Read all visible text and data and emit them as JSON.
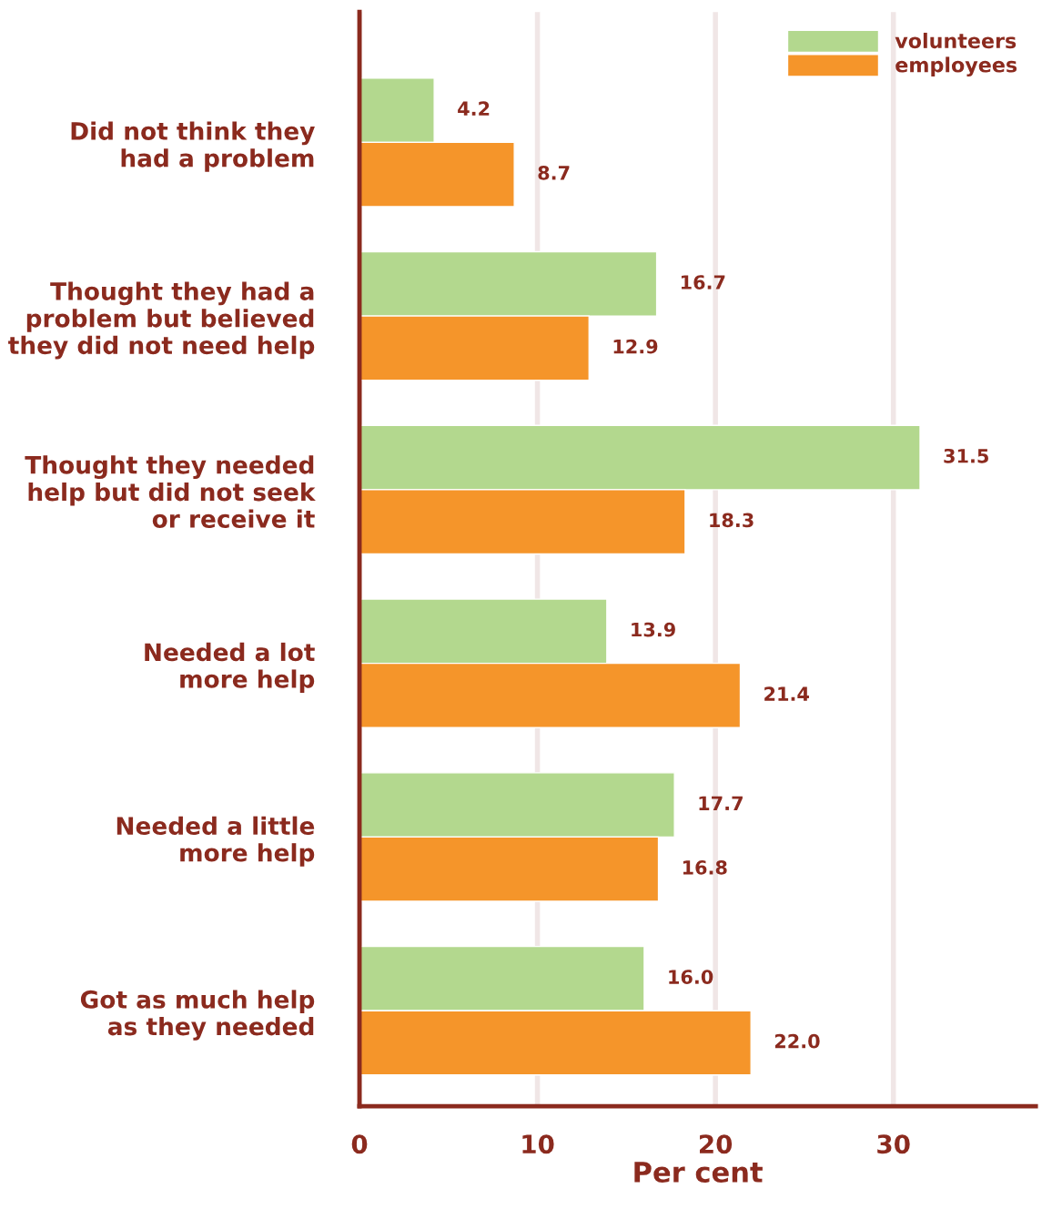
{
  "chart_data": {
    "type": "bar",
    "orientation": "horizontal",
    "categories": [
      "Did not think they\nhad a problem",
      "Thought they had a\nproblem but believed\nthey did not need help",
      "Thought they needed\nhelp but did not seek\nor receive it",
      "Needed a lot\nmore help",
      "Needed a little\nmore help",
      "Got as much help\nas they needed"
    ],
    "series": [
      {
        "name": "volunteers",
        "color": "#b3d88e",
        "values": [
          4.2,
          16.7,
          31.5,
          13.9,
          17.7,
          16.0
        ],
        "value_labels": [
          "4.2",
          "16.7",
          "31.5",
          "13.9",
          "17.7",
          "16.0"
        ]
      },
      {
        "name": "employees",
        "color": "#f5952a",
        "values": [
          8.7,
          12.9,
          18.3,
          21.4,
          16.8,
          22.0
        ],
        "value_labels": [
          "8.7",
          "12.9",
          "18.3",
          "21.4",
          "16.8",
          "22.0"
        ]
      }
    ],
    "xlabel": "Per cent",
    "xlim": [
      0,
      38
    ],
    "xticks": [
      0,
      10,
      20,
      30
    ],
    "grid": "x",
    "legend": "top right"
  }
}
